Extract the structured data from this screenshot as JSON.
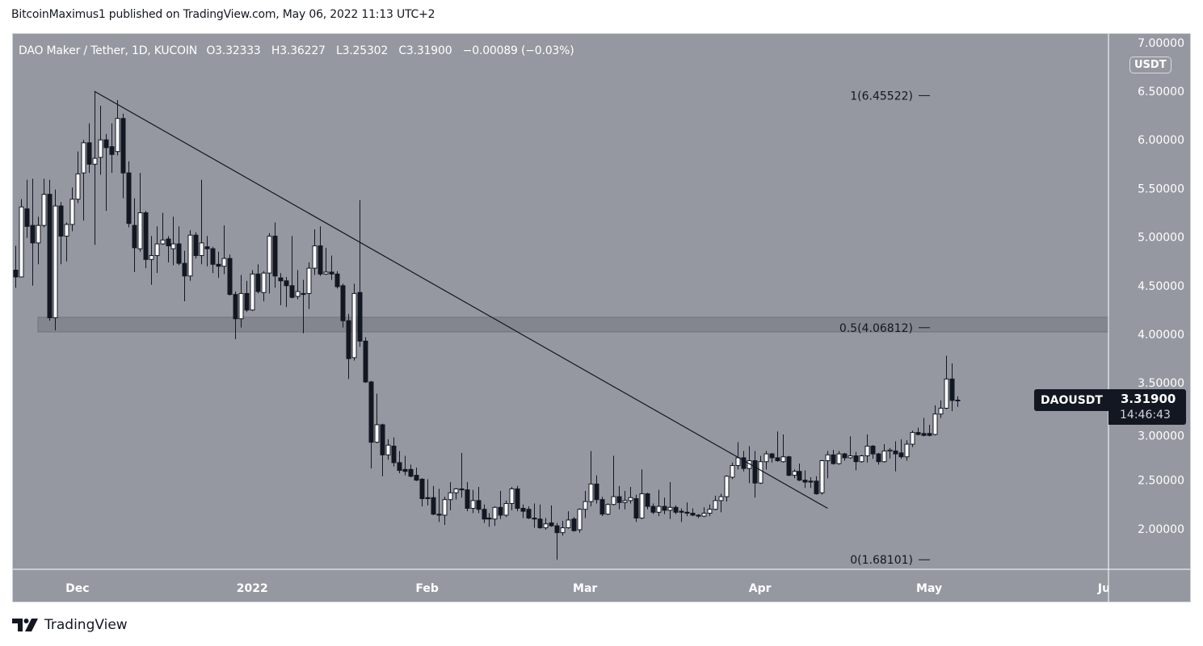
{
  "attribution": "BitcoinMaximus1 published on TradingView.com, May 06, 2022 11:13 UTC+2",
  "legend": {
    "title": "DAO Maker / Tether, 1D, KUCOIN",
    "open": "O3.32333",
    "high": "H3.36227",
    "low": "L3.25302",
    "close": "C3.31900",
    "change": "−0.00089 (−0.03%)"
  },
  "currency_button": "USDT",
  "symbol_label": "DAOUSDT",
  "last_price": "3.31900",
  "countdown": "14:46:43",
  "brand": "TradingView",
  "colors": {
    "background": "#9598a1",
    "up_body": "#ffffff",
    "down_body": "#131722",
    "wick": "#131722",
    "zone": "#7f828b",
    "axis_text": "#ffffff"
  },
  "chart_data": {
    "type": "candlestick",
    "symbol": "DAOUSDT",
    "interval": "1D",
    "ylim": [
      1.55,
      7.05
    ],
    "y_ticks": [
      "7.00000",
      "6.50000",
      "6.00000",
      "5.50000",
      "5.00000",
      "4.50000",
      "4.00000",
      "3.50000",
      "3.00000",
      "2.50000",
      "2.00000"
    ],
    "x_ticks": [
      {
        "label": "Dec",
        "date": "2021-12-01"
      },
      {
        "label": "2022",
        "date": "2022-01-01"
      },
      {
        "label": "Feb",
        "date": "2022-02-01"
      },
      {
        "label": "Mar",
        "date": "2022-03-01"
      },
      {
        "label": "Apr",
        "date": "2022-04-01"
      },
      {
        "label": "May",
        "date": "2022-05-01"
      },
      {
        "label": "Ju",
        "date": "2022-06-01"
      }
    ],
    "columns": [
      "date",
      "open",
      "high",
      "low",
      "close"
    ],
    "candles": [
      [
        "2021-11-20",
        4.66,
        4.91,
        4.48,
        4.59
      ],
      [
        "2021-11-21",
        4.59,
        5.39,
        4.59,
        5.31
      ],
      [
        "2021-11-22",
        5.29,
        5.59,
        4.99,
        5.11
      ],
      [
        "2021-11-23",
        5.12,
        5.6,
        4.5,
        4.94
      ],
      [
        "2021-11-24",
        4.94,
        5.21,
        4.72,
        5.12
      ],
      [
        "2021-11-25",
        5.12,
        5.6,
        5.1,
        5.44
      ],
      [
        "2021-11-26",
        5.44,
        5.59,
        4.14,
        4.17
      ],
      [
        "2021-11-27",
        4.17,
        5.49,
        4.04,
        5.32
      ],
      [
        "2021-11-28",
        5.32,
        5.36,
        4.72,
        5.01
      ],
      [
        "2021-11-29",
        5.01,
        5.15,
        4.75,
        5.13
      ],
      [
        "2021-11-30",
        5.13,
        5.51,
        5.06,
        5.39
      ],
      [
        "2021-12-01",
        5.39,
        5.88,
        5.35,
        5.65
      ],
      [
        "2021-12-02",
        5.66,
        6.0,
        5.17,
        5.97
      ],
      [
        "2021-12-03",
        5.97,
        6.17,
        5.66,
        5.75
      ],
      [
        "2021-12-04",
        5.75,
        6.5,
        4.92,
        5.81
      ],
      [
        "2021-12-05",
        5.82,
        6.35,
        5.64,
        6.0
      ],
      [
        "2021-12-06",
        6.0,
        6.06,
        5.27,
        5.92
      ],
      [
        "2021-12-07",
        5.93,
        6.17,
        5.66,
        5.85
      ],
      [
        "2021-12-08",
        5.88,
        6.41,
        5.84,
        6.22
      ],
      [
        "2021-12-09",
        6.22,
        6.27,
        5.4,
        5.66
      ],
      [
        "2021-12-10",
        5.66,
        5.78,
        5.1,
        5.14
      ],
      [
        "2021-12-11",
        5.12,
        5.4,
        4.64,
        4.89
      ],
      [
        "2021-12-12",
        4.88,
        5.66,
        4.85,
        5.25
      ],
      [
        "2021-12-13",
        5.25,
        5.27,
        4.68,
        4.77
      ],
      [
        "2021-12-14",
        4.77,
        5.01,
        4.51,
        4.81
      ],
      [
        "2021-12-15",
        4.81,
        5.11,
        4.63,
        4.93
      ],
      [
        "2021-12-16",
        4.93,
        5.25,
        4.92,
        4.97
      ],
      [
        "2021-12-17",
        4.98,
        5.01,
        4.74,
        4.91
      ],
      [
        "2021-12-18",
        4.88,
        5.21,
        4.71,
        4.93
      ],
      [
        "2021-12-19",
        4.93,
        5.11,
        4.71,
        4.73
      ],
      [
        "2021-12-20",
        4.73,
        4.86,
        4.34,
        4.6
      ],
      [
        "2021-12-21",
        4.6,
        5.07,
        4.55,
        5.02
      ],
      [
        "2021-12-22",
        5.02,
        5.05,
        4.78,
        4.81
      ],
      [
        "2021-12-23",
        4.81,
        5.59,
        4.72,
        4.94
      ],
      [
        "2021-12-24",
        4.9,
        5.01,
        4.7,
        4.88
      ],
      [
        "2021-12-25",
        4.88,
        4.9,
        4.63,
        4.72
      ],
      [
        "2021-12-26",
        4.72,
        4.85,
        4.58,
        4.7
      ],
      [
        "2021-12-27",
        4.7,
        5.12,
        4.62,
        4.78
      ],
      [
        "2021-12-28",
        4.78,
        4.82,
        4.4,
        4.41
      ],
      [
        "2021-12-29",
        4.41,
        4.44,
        3.95,
        4.16
      ],
      [
        "2021-12-30",
        4.16,
        4.61,
        4.07,
        4.42
      ],
      [
        "2021-12-31",
        4.42,
        4.55,
        4.23,
        4.25
      ],
      [
        "2022-01-01",
        4.25,
        4.66,
        4.24,
        4.62
      ],
      [
        "2022-01-02",
        4.62,
        4.72,
        4.42,
        4.44
      ],
      [
        "2022-01-03",
        4.43,
        4.65,
        4.34,
        4.63
      ],
      [
        "2022-01-04",
        4.63,
        5.04,
        4.42,
        5.01
      ],
      [
        "2022-01-05",
        5.01,
        5.15,
        4.48,
        4.6
      ],
      [
        "2022-01-06",
        4.58,
        4.63,
        4.3,
        4.55
      ],
      [
        "2022-01-07",
        4.55,
        4.59,
        4.28,
        4.5
      ],
      [
        "2022-01-08",
        4.5,
        5.01,
        4.37,
        4.38
      ],
      [
        "2022-01-09",
        4.39,
        4.66,
        4.36,
        4.44
      ],
      [
        "2022-01-10",
        4.42,
        4.56,
        4.01,
        4.41
      ],
      [
        "2022-01-11",
        4.42,
        4.74,
        4.26,
        4.68
      ],
      [
        "2022-01-12",
        4.68,
        5.08,
        4.61,
        4.91
      ],
      [
        "2022-01-13",
        4.91,
        5.11,
        4.6,
        4.62
      ],
      [
        "2022-01-14",
        4.62,
        4.89,
        4.61,
        4.64
      ],
      [
        "2022-01-15",
        4.64,
        4.81,
        4.56,
        4.62
      ],
      [
        "2022-01-16",
        4.62,
        4.65,
        4.47,
        4.49
      ],
      [
        "2022-01-17",
        4.5,
        4.52,
        4.07,
        4.14
      ],
      [
        "2022-01-18",
        4.14,
        4.21,
        3.54,
        3.75
      ],
      [
        "2022-01-19",
        3.76,
        4.52,
        3.73,
        4.42
      ],
      [
        "2022-01-20",
        4.43,
        5.38,
        3.87,
        3.93
      ],
      [
        "2022-01-21",
        3.93,
        3.97,
        3.5,
        3.51
      ],
      [
        "2022-01-22",
        3.51,
        3.52,
        2.62,
        2.89
      ],
      [
        "2022-01-23",
        2.89,
        3.39,
        2.88,
        3.07
      ],
      [
        "2022-01-24",
        3.07,
        3.08,
        2.54,
        2.76
      ],
      [
        "2022-01-25",
        2.76,
        2.92,
        2.71,
        2.86
      ],
      [
        "2022-01-26",
        2.85,
        2.94,
        2.64,
        2.68
      ],
      [
        "2022-01-27",
        2.68,
        2.8,
        2.57,
        2.6
      ],
      [
        "2022-01-28",
        2.61,
        2.75,
        2.55,
        2.59
      ],
      [
        "2022-01-29",
        2.61,
        2.66,
        2.53,
        2.54
      ],
      [
        "2022-01-30",
        2.55,
        2.63,
        2.49,
        2.5
      ],
      [
        "2022-01-31",
        2.51,
        2.52,
        2.23,
        2.31
      ],
      [
        "2022-02-01",
        2.32,
        2.51,
        2.24,
        2.31
      ],
      [
        "2022-02-02",
        2.32,
        2.44,
        2.14,
        2.15
      ],
      [
        "2022-02-03",
        2.15,
        2.41,
        2.07,
        2.14
      ],
      [
        "2022-02-04",
        2.14,
        2.33,
        2.04,
        2.3
      ],
      [
        "2022-02-05",
        2.3,
        2.48,
        2.19,
        2.37
      ],
      [
        "2022-02-06",
        2.37,
        2.42,
        2.3,
        2.41
      ],
      [
        "2022-02-07",
        2.41,
        2.78,
        2.32,
        2.4
      ],
      [
        "2022-02-08",
        2.4,
        2.48,
        2.18,
        2.21
      ],
      [
        "2022-02-09",
        2.21,
        2.4,
        2.16,
        2.29
      ],
      [
        "2022-02-10",
        2.29,
        2.43,
        2.16,
        2.2
      ],
      [
        "2022-02-11",
        2.2,
        2.25,
        2.06,
        2.1
      ],
      [
        "2022-02-12",
        2.11,
        2.16,
        2.02,
        2.1
      ],
      [
        "2022-02-13",
        2.1,
        2.23,
        2.03,
        2.22
      ],
      [
        "2022-02-14",
        2.22,
        2.39,
        2.1,
        2.14
      ],
      [
        "2022-02-15",
        2.14,
        2.29,
        2.12,
        2.26
      ],
      [
        "2022-02-16",
        2.26,
        2.43,
        2.19,
        2.41
      ],
      [
        "2022-02-17",
        2.41,
        2.44,
        2.18,
        2.21
      ],
      [
        "2022-02-18",
        2.21,
        2.25,
        2.11,
        2.18
      ],
      [
        "2022-02-19",
        2.2,
        2.23,
        2.1,
        2.11
      ],
      [
        "2022-02-20",
        2.11,
        2.26,
        2.01,
        2.1
      ],
      [
        "2022-02-21",
        2.1,
        2.25,
        2.0,
        2.01
      ],
      [
        "2022-02-22",
        2.01,
        2.11,
        1.99,
        2.05
      ],
      [
        "2022-02-23",
        2.06,
        2.24,
        2.02,
        2.03
      ],
      [
        "2022-02-24",
        2.03,
        2.06,
        1.681,
        1.96
      ],
      [
        "2022-02-25",
        1.96,
        2.08,
        1.93,
        2.01
      ],
      [
        "2022-02-26",
        2.01,
        2.18,
        2.0,
        2.09
      ],
      [
        "2022-02-27",
        2.1,
        2.12,
        1.97,
        1.98
      ],
      [
        "2022-02-28",
        1.99,
        2.21,
        1.96,
        2.2
      ],
      [
        "2022-03-01",
        2.2,
        2.39,
        2.11,
        2.28
      ],
      [
        "2022-03-02",
        2.28,
        2.8,
        2.23,
        2.46
      ],
      [
        "2022-03-03",
        2.46,
        2.55,
        2.26,
        2.3
      ],
      [
        "2022-03-04",
        2.3,
        2.33,
        2.13,
        2.15
      ],
      [
        "2022-03-05",
        2.15,
        2.26,
        2.14,
        2.25
      ],
      [
        "2022-03-06",
        2.25,
        2.75,
        2.24,
        2.33
      ],
      [
        "2022-03-07",
        2.33,
        2.44,
        2.2,
        2.27
      ],
      [
        "2022-03-08",
        2.27,
        2.39,
        2.2,
        2.29
      ],
      [
        "2022-03-09",
        2.29,
        2.43,
        2.26,
        2.32
      ],
      [
        "2022-03-10",
        2.31,
        2.35,
        2.07,
        2.11
      ],
      [
        "2022-03-11",
        2.11,
        2.61,
        2.1,
        2.36
      ],
      [
        "2022-03-12",
        2.36,
        2.37,
        2.2,
        2.23
      ],
      [
        "2022-03-13",
        2.23,
        2.26,
        2.15,
        2.17
      ],
      [
        "2022-03-14",
        2.17,
        2.4,
        2.13,
        2.23
      ],
      [
        "2022-03-15",
        2.23,
        2.32,
        2.15,
        2.19
      ],
      [
        "2022-03-16",
        2.19,
        2.48,
        2.1,
        2.22
      ],
      [
        "2022-03-17",
        2.22,
        2.24,
        2.15,
        2.17
      ],
      [
        "2022-03-18",
        2.18,
        2.21,
        2.07,
        2.17
      ],
      [
        "2022-03-19",
        2.17,
        2.27,
        2.13,
        2.16
      ],
      [
        "2022-03-20",
        2.16,
        2.21,
        2.13,
        2.14
      ],
      [
        "2022-03-21",
        2.14,
        2.15,
        2.11,
        2.13
      ],
      [
        "2022-03-22",
        2.13,
        2.22,
        2.12,
        2.16
      ],
      [
        "2022-03-23",
        2.16,
        2.25,
        2.13,
        2.2
      ],
      [
        "2022-03-24",
        2.2,
        2.34,
        2.19,
        2.29
      ],
      [
        "2022-03-25",
        2.29,
        2.36,
        2.17,
        2.33
      ],
      [
        "2022-03-26",
        2.33,
        2.55,
        2.28,
        2.54
      ],
      [
        "2022-03-27",
        2.53,
        2.68,
        2.51,
        2.65
      ],
      [
        "2022-03-28",
        2.65,
        2.89,
        2.61,
        2.73
      ],
      [
        "2022-03-29",
        2.73,
        2.8,
        2.59,
        2.62
      ],
      [
        "2022-03-30",
        2.62,
        2.85,
        2.47,
        2.7
      ],
      [
        "2022-03-31",
        2.7,
        2.8,
        2.32,
        2.47
      ],
      [
        "2022-04-01",
        2.47,
        2.75,
        2.46,
        2.69
      ],
      [
        "2022-04-02",
        2.69,
        2.8,
        2.61,
        2.77
      ],
      [
        "2022-04-03",
        2.77,
        2.78,
        2.68,
        2.73
      ],
      [
        "2022-04-04",
        2.73,
        3.0,
        2.69,
        2.7
      ],
      [
        "2022-04-05",
        2.69,
        2.97,
        2.68,
        2.74
      ],
      [
        "2022-04-06",
        2.74,
        2.75,
        2.54,
        2.55
      ],
      [
        "2022-04-07",
        2.55,
        2.61,
        2.52,
        2.59
      ],
      [
        "2022-04-08",
        2.59,
        2.67,
        2.49,
        2.5
      ],
      [
        "2022-04-09",
        2.5,
        2.6,
        2.42,
        2.48
      ],
      [
        "2022-04-10",
        2.49,
        2.53,
        2.42,
        2.48
      ],
      [
        "2022-04-11",
        2.49,
        2.54,
        2.35,
        2.36
      ],
      [
        "2022-04-12",
        2.37,
        2.71,
        2.35,
        2.7
      ],
      [
        "2022-04-13",
        2.7,
        2.8,
        2.52,
        2.76
      ],
      [
        "2022-04-14",
        2.76,
        2.81,
        2.66,
        2.67
      ],
      [
        "2022-04-15",
        2.67,
        2.8,
        2.66,
        2.77
      ],
      [
        "2022-04-16",
        2.77,
        2.78,
        2.7,
        2.73
      ],
      [
        "2022-04-17",
        2.73,
        2.95,
        2.72,
        2.75
      ],
      [
        "2022-04-18",
        2.75,
        2.79,
        2.6,
        2.69
      ],
      [
        "2022-04-19",
        2.69,
        2.76,
        2.68,
        2.75
      ],
      [
        "2022-04-20",
        2.75,
        2.97,
        2.68,
        2.85
      ],
      [
        "2022-04-21",
        2.85,
        2.86,
        2.72,
        2.77
      ],
      [
        "2022-04-22",
        2.77,
        2.78,
        2.66,
        2.69
      ],
      [
        "2022-04-23",
        2.69,
        2.87,
        2.68,
        2.8
      ],
      [
        "2022-04-24",
        2.8,
        2.83,
        2.72,
        2.81
      ],
      [
        "2022-04-25",
        2.8,
        2.9,
        2.59,
        2.77
      ],
      [
        "2022-04-26",
        2.78,
        2.92,
        2.72,
        2.74
      ],
      [
        "2022-04-27",
        2.74,
        2.91,
        2.7,
        2.87
      ],
      [
        "2022-04-28",
        2.87,
        3.01,
        2.84,
        2.99
      ],
      [
        "2022-04-29",
        2.99,
        3.04,
        2.96,
        2.97
      ],
      [
        "2022-04-30",
        2.98,
        3.14,
        2.95,
        2.96
      ],
      [
        "2022-05-01",
        2.98,
        3.07,
        2.95,
        2.96
      ],
      [
        "2022-05-02",
        2.97,
        3.27,
        2.96,
        3.18
      ],
      [
        "2022-05-03",
        3.18,
        3.32,
        3.14,
        3.24
      ],
      [
        "2022-05-04",
        3.24,
        3.78,
        3.23,
        3.54
      ],
      [
        "2022-05-05",
        3.54,
        3.7,
        3.21,
        3.32
      ],
      [
        "2022-05-06",
        3.32333,
        3.36227,
        3.25302,
        3.319
      ]
    ],
    "trendline": {
      "from": [
        "2021-12-04",
        6.5
      ],
      "to": [
        "2022-04-13",
        2.21
      ]
    },
    "support_zone": {
      "from_date": "2021-11-24",
      "low": 4.025,
      "high": 4.175
    },
    "fib_levels": [
      {
        "label": "1(6.45522)",
        "price": 6.45522
      },
      {
        "label": "0.5(4.06812)",
        "price": 4.06812
      },
      {
        "label": "0(1.68101)",
        "price": 1.68101
      }
    ]
  }
}
